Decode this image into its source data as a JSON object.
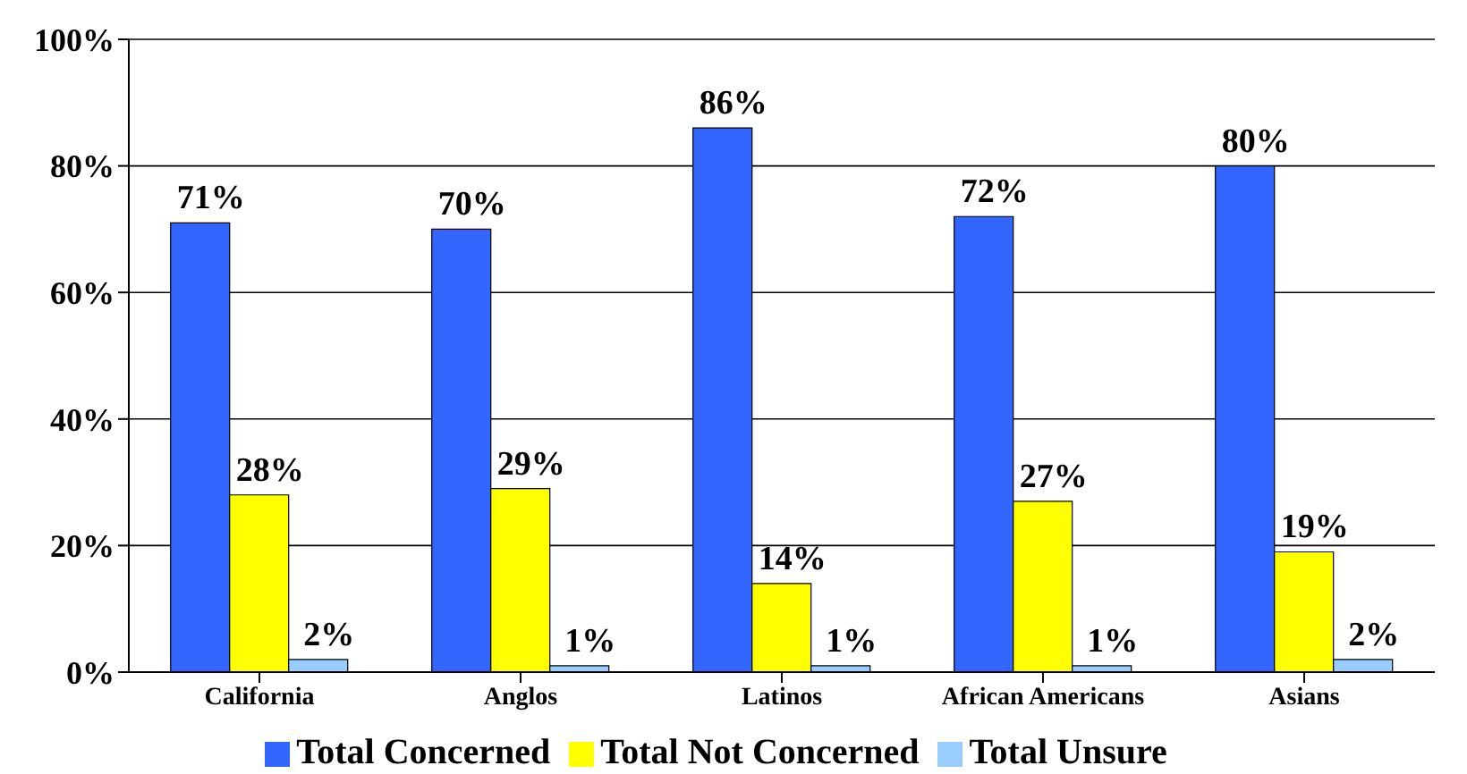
{
  "chart_data": {
    "type": "bar",
    "categories": [
      "California",
      "Anglos",
      "Latinos",
      "African Americans",
      "Asians"
    ],
    "series": [
      {
        "name": "Total Concerned",
        "color": "#3366ff",
        "values": [
          71,
          70,
          86,
          72,
          80
        ],
        "value_labels": [
          "71%",
          "70%",
          "86%",
          "72%",
          "80%"
        ]
      },
      {
        "name": "Total Not Concerned",
        "color": "#ffff00",
        "values": [
          28,
          29,
          14,
          27,
          19
        ],
        "value_labels": [
          "28%",
          "29%",
          "14%",
          "27%",
          "19%"
        ]
      },
      {
        "name": "Total Unsure",
        "color": "#99ccff",
        "values": [
          2,
          1,
          1,
          1,
          2
        ],
        "value_labels": [
          "2%",
          "1%",
          "1%",
          "1%",
          "2%"
        ]
      }
    ],
    "ylim": [
      0,
      100
    ],
    "yticks": [
      {
        "value": 0,
        "label": "0%"
      },
      {
        "value": 20,
        "label": "20%"
      },
      {
        "value": 40,
        "label": "40%"
      },
      {
        "value": 60,
        "label": "60%"
      },
      {
        "value": 80,
        "label": "80%"
      },
      {
        "value": 100,
        "label": "100%"
      }
    ],
    "grid": "y",
    "legend": "bottom"
  }
}
